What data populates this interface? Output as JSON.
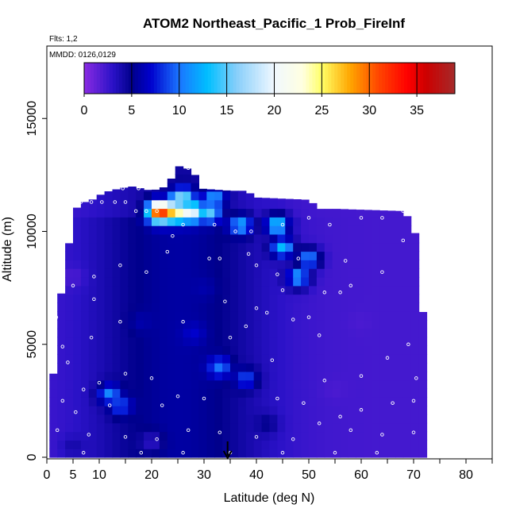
{
  "chart_data": {
    "type": "heatmap",
    "title": "ATOM2 Northeast_Pacific_1 Prob_FireInf",
    "subtitle_flights": "Flts: 1,2",
    "subtitle_dates": "MMDD: 0126,0129",
    "xlabel": "Latitude (deg N)",
    "ylabel": "Altitude (m)",
    "xlim": [
      0,
      85
    ],
    "ylim": [
      0,
      17500
    ],
    "x_major_ticks": [
      0,
      5,
      10,
      20,
      30,
      40,
      50,
      60,
      70,
      80
    ],
    "x_minor_ticks": [
      15,
      25,
      35,
      45,
      55,
      65,
      75,
      85
    ],
    "y_ticks": [
      0,
      5000,
      10000,
      15000
    ],
    "colorbar": {
      "ticks": [
        0,
        5,
        10,
        15,
        20,
        25,
        30,
        35
      ],
      "range": [
        0,
        39
      ],
      "stops": [
        {
          "v": 0,
          "c": "#8a2be2"
        },
        {
          "v": 3,
          "c": "#2b12c8"
        },
        {
          "v": 5,
          "c": "#00008b"
        },
        {
          "v": 7,
          "c": "#0000cd"
        },
        {
          "v": 10,
          "c": "#1a75ff"
        },
        {
          "v": 13,
          "c": "#00bfff"
        },
        {
          "v": 16,
          "c": "#87cefa"
        },
        {
          "v": 20,
          "c": "#f0f8ff"
        },
        {
          "v": 23,
          "c": "#ffffe0"
        },
        {
          "v": 25,
          "c": "#ffff66"
        },
        {
          "v": 28,
          "c": "#ffa500"
        },
        {
          "v": 31,
          "c": "#ff4500"
        },
        {
          "v": 34,
          "c": "#ff0000"
        },
        {
          "v": 36,
          "c": "#cc0000"
        },
        {
          "v": 39,
          "c": "#a52a2a"
        }
      ]
    },
    "marker": {
      "latitude": 34.5,
      "description": "arrow at latitude ~34.5"
    },
    "profile_envelope": [
      {
        "lat": 0.5,
        "top": 800
      },
      {
        "lat": 1.0,
        "top": 2900
      },
      {
        "lat": 1.5,
        "top": 4500
      },
      {
        "lat": 2.0,
        "top": 6200
      },
      {
        "lat": 3.0,
        "top": 7600
      },
      {
        "lat": 4.0,
        "top": 9200
      },
      {
        "lat": 5.0,
        "top": 10300
      },
      {
        "lat": 6.0,
        "top": 11300
      },
      {
        "lat": 8.0,
        "top": 11300
      },
      {
        "lat": 10.0,
        "top": 11600
      },
      {
        "lat": 12.0,
        "top": 11800
      },
      {
        "lat": 16.0,
        "top": 12000
      },
      {
        "lat": 20.0,
        "top": 11800
      },
      {
        "lat": 23.0,
        "top": 12000
      },
      {
        "lat": 25.0,
        "top": 12900
      },
      {
        "lat": 28.0,
        "top": 12700
      },
      {
        "lat": 29.0,
        "top": 11900
      },
      {
        "lat": 35.0,
        "top": 11800
      },
      {
        "lat": 38.0,
        "top": 11800
      },
      {
        "lat": 40.0,
        "top": 11500
      },
      {
        "lat": 50.0,
        "top": 11400
      },
      {
        "lat": 52.0,
        "top": 11000
      },
      {
        "lat": 55.0,
        "top": 11000
      },
      {
        "lat": 68.0,
        "top": 10900
      },
      {
        "lat": 70.0,
        "top": 10300
      },
      {
        "lat": 71.0,
        "top": 8800
      },
      {
        "lat": 71.5,
        "top": 7600
      },
      {
        "lat": 71.8,
        "top": 6200
      },
      {
        "lat": 72.0,
        "top": 5000
      },
      {
        "lat": 72.0,
        "top": 2600
      },
      {
        "lat": 71.5,
        "top": 1500
      },
      {
        "lat": 71.0,
        "top": 300
      }
    ],
    "field_features": [
      {
        "lat": 21.7,
        "alt": 10900,
        "value": 37
      },
      {
        "lat": 23.0,
        "alt": 10900,
        "value": 33
      },
      {
        "lat": 24.5,
        "alt": 10900,
        "value": 28
      },
      {
        "lat": 26.0,
        "alt": 10900,
        "value": 24
      },
      {
        "lat": 28.5,
        "alt": 10900,
        "value": 19
      },
      {
        "lat": 31.0,
        "alt": 10900,
        "value": 15
      },
      {
        "lat": 26.0,
        "alt": 11500,
        "value": 15
      },
      {
        "lat": 32.0,
        "alt": 11500,
        "value": 11
      },
      {
        "lat": 37.0,
        "alt": 10300,
        "value": 12
      },
      {
        "lat": 44.0,
        "alt": 10300,
        "value": 14
      },
      {
        "lat": 45.0,
        "alt": 9300,
        "value": 13
      },
      {
        "lat": 50.0,
        "alt": 8800,
        "value": 11
      },
      {
        "lat": 48.0,
        "alt": 8000,
        "value": 12
      },
      {
        "lat": 12.0,
        "alt": 2800,
        "value": 11
      },
      {
        "lat": 14.0,
        "alt": 2300,
        "value": 9
      },
      {
        "lat": 30.0,
        "alt": 7500,
        "value": 6
      },
      {
        "lat": 33.0,
        "alt": 4000,
        "value": 10
      },
      {
        "lat": 28.0,
        "alt": 5500,
        "value": 7
      },
      {
        "lat": 18.0,
        "alt": 6000,
        "value": 6
      },
      {
        "lat": 38.0,
        "alt": 3500,
        "value": 9
      },
      {
        "lat": 55.0,
        "alt": 3000,
        "value": 2
      },
      {
        "lat": 60.0,
        "alt": 6000,
        "value": 2
      },
      {
        "lat": 5.0,
        "alt": 8000,
        "value": 2
      },
      {
        "lat": 5.0,
        "alt": 500,
        "value": 4
      },
      {
        "lat": 20.0,
        "alt": 700,
        "value": 3
      },
      {
        "lat": 42.0,
        "alt": 1500,
        "value": 5
      }
    ],
    "observation_points": [
      {
        "lat": 2.5,
        "alt": 11300
      },
      {
        "lat": 4.0,
        "alt": 11300
      },
      {
        "lat": 6.5,
        "alt": 11300
      },
      {
        "lat": 8.5,
        "alt": 11300
      },
      {
        "lat": 10.5,
        "alt": 11300
      },
      {
        "lat": 13.0,
        "alt": 11300
      },
      {
        "lat": 15.0,
        "alt": 11300
      },
      {
        "lat": 17.0,
        "alt": 10900
      },
      {
        "lat": 19.0,
        "alt": 10900
      },
      {
        "lat": 21.0,
        "alt": 10900
      },
      {
        "lat": 14.5,
        "alt": 11900
      },
      {
        "lat": 17.5,
        "alt": 11900
      },
      {
        "lat": 9.0,
        "alt": 12000
      },
      {
        "lat": 27.0,
        "alt": 12800
      },
      {
        "lat": 29.0,
        "alt": 12800
      },
      {
        "lat": 26.0,
        "alt": 10300
      },
      {
        "lat": 32.0,
        "alt": 10300
      },
      {
        "lat": 36.0,
        "alt": 10000
      },
      {
        "lat": 39.0,
        "alt": 10000
      },
      {
        "lat": 45.0,
        "alt": 10300
      },
      {
        "lat": 50.0,
        "alt": 10600
      },
      {
        "lat": 54.0,
        "alt": 10300
      },
      {
        "lat": 60.0,
        "alt": 10600
      },
      {
        "lat": 64.0,
        "alt": 10600
      },
      {
        "lat": 68.0,
        "alt": 10900
      },
      {
        "lat": 24.0,
        "alt": 9800
      },
      {
        "lat": 23.0,
        "alt": 9100
      },
      {
        "lat": 31.0,
        "alt": 8800
      },
      {
        "lat": 33.0,
        "alt": 8800
      },
      {
        "lat": 38.5,
        "alt": 9000
      },
      {
        "lat": 40.0,
        "alt": 8500
      },
      {
        "lat": 48.0,
        "alt": 8800
      },
      {
        "lat": 44.0,
        "alt": 8100
      },
      {
        "lat": 45.0,
        "alt": 7400
      },
      {
        "lat": 53.0,
        "alt": 7300
      },
      {
        "lat": 56.0,
        "alt": 7300
      },
      {
        "lat": 58.0,
        "alt": 7600
      },
      {
        "lat": 47.0,
        "alt": 6100
      },
      {
        "lat": 50.0,
        "alt": 6200
      },
      {
        "lat": 35.0,
        "alt": 5300
      },
      {
        "lat": 38.0,
        "alt": 5800
      },
      {
        "lat": 40.0,
        "alt": 6600
      },
      {
        "lat": 42.0,
        "alt": 6400
      },
      {
        "lat": 26.0,
        "alt": 6000
      },
      {
        "lat": 14.0,
        "alt": 6000
      },
      {
        "lat": 9.0,
        "alt": 7000
      },
      {
        "lat": 5.0,
        "alt": 7600
      },
      {
        "lat": 2.5,
        "alt": 9000
      },
      {
        "lat": 9.0,
        "alt": 8000
      },
      {
        "lat": 14.0,
        "alt": 8500
      },
      {
        "lat": 19.0,
        "alt": 8200
      },
      {
        "lat": 3.0,
        "alt": 4900
      },
      {
        "lat": 8.5,
        "alt": 5300
      },
      {
        "lat": 4.0,
        "alt": 4200
      },
      {
        "lat": 10.0,
        "alt": 3300
      },
      {
        "lat": 15.0,
        "alt": 3700
      },
      {
        "lat": 20.0,
        "alt": 3500
      },
      {
        "lat": 7.0,
        "alt": 3000
      },
      {
        "lat": 3.0,
        "alt": 2500
      },
      {
        "lat": 5.5,
        "alt": 2000
      },
      {
        "lat": 12.0,
        "alt": 2300
      },
      {
        "lat": 22.0,
        "alt": 2300
      },
      {
        "lat": 25.0,
        "alt": 2700
      },
      {
        "lat": 30.0,
        "alt": 2600
      },
      {
        "lat": 44.0,
        "alt": 2600
      },
      {
        "lat": 49.0,
        "alt": 2400
      },
      {
        "lat": 56.0,
        "alt": 1800
      },
      {
        "lat": 60.0,
        "alt": 2100
      },
      {
        "lat": 66.0,
        "alt": 2400
      },
      {
        "lat": 70.0,
        "alt": 2500
      },
      {
        "lat": 70.5,
        "alt": 3500
      },
      {
        "lat": 69.0,
        "alt": 5000
      },
      {
        "lat": 65.0,
        "alt": 4400
      },
      {
        "lat": 60.0,
        "alt": 3600
      },
      {
        "lat": 53.0,
        "alt": 3400
      },
      {
        "lat": 2.0,
        "alt": 1200
      },
      {
        "lat": 8.0,
        "alt": 1000
      },
      {
        "lat": 15.0,
        "alt": 900
      },
      {
        "lat": 21.0,
        "alt": 800
      },
      {
        "lat": 27.0,
        "alt": 1200
      },
      {
        "lat": 33.0,
        "alt": 1100
      },
      {
        "lat": 40.0,
        "alt": 900
      },
      {
        "lat": 47.0,
        "alt": 800
      },
      {
        "lat": 52.0,
        "alt": 1500
      },
      {
        "lat": 58.0,
        "alt": 1200
      },
      {
        "lat": 64.0,
        "alt": 1000
      },
      {
        "lat": 70.0,
        "alt": 1100
      },
      {
        "lat": 7.0,
        "alt": 200
      },
      {
        "lat": 18.0,
        "alt": 200
      },
      {
        "lat": 26.0,
        "alt": 200
      },
      {
        "lat": 35.0,
        "alt": 200
      },
      {
        "lat": 45.0,
        "alt": 200
      },
      {
        "lat": 55.0,
        "alt": 200
      },
      {
        "lat": 63.0,
        "alt": 200
      },
      {
        "lat": 1.5,
        "alt": 3900
      },
      {
        "lat": 1.8,
        "alt": 6200
      },
      {
        "lat": 34.0,
        "alt": 6900
      },
      {
        "lat": 43.0,
        "alt": 4300
      },
      {
        "lat": 52.0,
        "alt": 5400
      },
      {
        "lat": 57.0,
        "alt": 8700
      },
      {
        "lat": 64.0,
        "alt": 8200
      },
      {
        "lat": 68.0,
        "alt": 9600
      }
    ]
  }
}
